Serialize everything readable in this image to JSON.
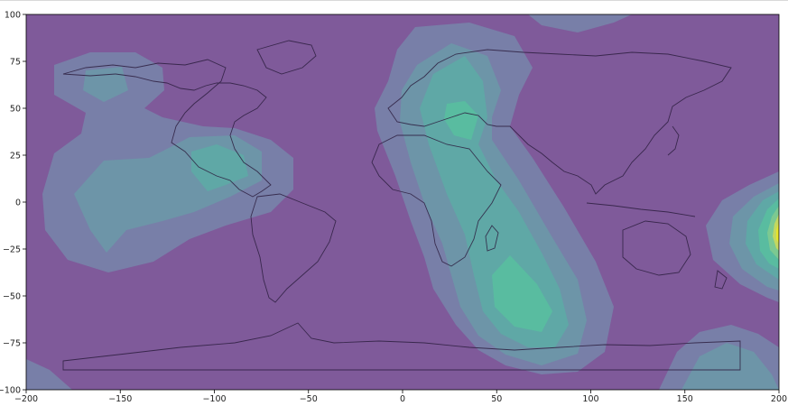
{
  "chart_data": {
    "type": "heatmap",
    "title": "",
    "xlabel": "",
    "ylabel": "",
    "xlim": [
      -200,
      200
    ],
    "ylim": [
      -100,
      100
    ],
    "x_ticks": [
      -200,
      -150,
      -100,
      -50,
      0,
      50,
      100,
      150,
      200
    ],
    "y_ticks": [
      100,
      75,
      50,
      25,
      0,
      -25,
      -50,
      -75,
      -100
    ],
    "x_tick_labels": [
      "−200",
      "−150",
      "−100",
      "−50",
      "0",
      "50",
      "100",
      "150",
      "200"
    ],
    "y_tick_labels": [
      "100",
      "75",
      "50",
      "25",
      "0",
      "−25",
      "−50",
      "−75",
      "−100"
    ],
    "grid": false,
    "colormap": "viridis",
    "background_level_color": "#7f5a9a",
    "level_colors": [
      "#7f5a9a",
      "#787fa8",
      "#6d95a8",
      "#5fa8a6",
      "#59bca0",
      "#7cc991",
      "#c4d860",
      "#e8e52a"
    ],
    "overlay": "world coastlines and country borders",
    "hotspots": [
      {
        "x": 35,
        "y": 40,
        "peak_level": 3
      },
      {
        "x": 62,
        "y": -53,
        "peak_level": 3
      },
      {
        "x": -90,
        "y": 18,
        "peak_level": 3
      },
      {
        "x": -150,
        "y": 65,
        "peak_level": 3
      },
      {
        "x": 200,
        "y": -17,
        "peak_level": 7
      }
    ]
  }
}
